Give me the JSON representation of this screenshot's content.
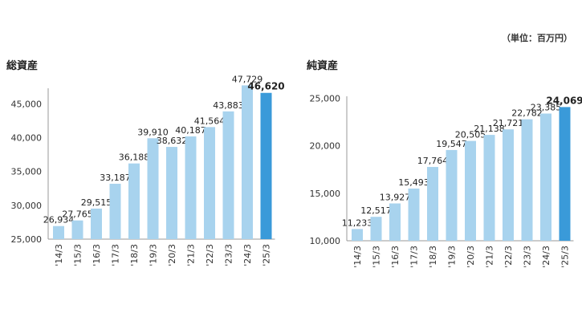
{
  "unit_note": "（単位：百万円）",
  "chart_data": [
    {
      "type": "bar",
      "title": "総資産",
      "xlabel": "",
      "ylabel": "",
      "categories": [
        "'14/3",
        "'15/3",
        "'16/3",
        "'17/3",
        "'18/3",
        "'19/3",
        "'20/3",
        "'21/3",
        "'22/3",
        "'23/3",
        "'24/3",
        "'25/3"
      ],
      "values": [
        26934,
        27765,
        29515,
        33187,
        36188,
        39910,
        38632,
        40187,
        41564,
        43883,
        47729,
        46620
      ],
      "data_labels": [
        "26,934",
        "27,765",
        "29,515",
        "33,187",
        "36,188",
        "39,910",
        "38,632",
        "40,187",
        "41,564",
        "43,883",
        "47,729",
        "46,620"
      ],
      "ylim": [
        25000,
        47300
      ],
      "yticks": [
        25000,
        30000,
        35000,
        40000,
        45000
      ],
      "ytick_labels": [
        "25,000",
        "30,000",
        "35,000",
        "40,000",
        "45,000"
      ],
      "highlight_index": 11,
      "colors": {
        "bar": "#a8d3ee",
        "highlight": "#3a9ad9"
      },
      "grid": false,
      "legend": "none"
    },
    {
      "type": "bar",
      "title": "純資産",
      "xlabel": "",
      "ylabel": "",
      "categories": [
        "'14/3",
        "'15/3",
        "'16/3",
        "'17/3",
        "'18/3",
        "'19/3",
        "'20/3",
        "'21/3",
        "'22/3",
        "'23/3",
        "'24/3",
        "'25/3"
      ],
      "values": [
        11233,
        12517,
        13927,
        15493,
        17764,
        19547,
        20505,
        21138,
        21721,
        22782,
        23385,
        24069
      ],
      "data_labels": [
        "11,233",
        "12,517",
        "13,927",
        "15,493",
        "17,764",
        "19,547",
        "20,505",
        "21,138",
        "21,721",
        "22,782",
        "23,385",
        "24,069"
      ],
      "ylim": [
        10000,
        25200
      ],
      "yticks": [
        10000,
        15000,
        20000,
        25000
      ],
      "ytick_labels": [
        "10,000",
        "15,000",
        "20,000",
        "25,000"
      ],
      "highlight_index": 11,
      "colors": {
        "bar": "#a8d3ee",
        "highlight": "#3a9ad9"
      },
      "grid": false,
      "legend": "none"
    }
  ]
}
